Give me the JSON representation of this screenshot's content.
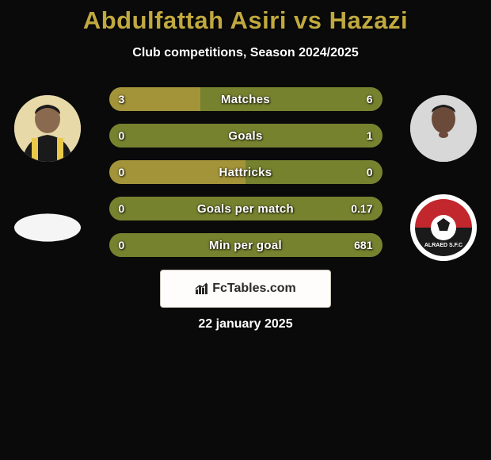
{
  "title_text": "Abdulfattah Asiri vs Hazazi",
  "title_color": "#c0a93f",
  "subtitle": "Club competitions, Season 2024/2025",
  "left_color": "#a3943a",
  "right_color": "#77822f",
  "bar_bg": "#333333",
  "stats": [
    {
      "label": "Matches",
      "left_val": "3",
      "right_val": "6",
      "left_num": 3,
      "right_num": 6
    },
    {
      "label": "Goals",
      "left_val": "0",
      "right_val": "1",
      "left_num": 0,
      "right_num": 1
    },
    {
      "label": "Hattricks",
      "left_val": "0",
      "right_val": "0",
      "left_num": 0,
      "right_num": 0
    },
    {
      "label": "Goals per match",
      "left_val": "0",
      "right_val": "0.17",
      "left_num": 0,
      "right_num": 0.17
    },
    {
      "label": "Min per goal",
      "left_val": "0",
      "right_val": "681",
      "left_num": 0,
      "right_num": 681
    }
  ],
  "watermark_text": "FcTables.com",
  "date_text": "22 january 2025",
  "player_left": {
    "bg": "#e8d9a8",
    "jersey": "#1a1a1a",
    "stripe": "#e8c94a",
    "skin": "#8a6a4f"
  },
  "player_right": {
    "bg": "#d8d8d8",
    "jersey": "#d8d8d8",
    "skin": "#6b4a3a"
  },
  "club_right": {
    "top": "#c1272d",
    "bottom": "#1a1a1a",
    "ball": "#ffffff"
  }
}
